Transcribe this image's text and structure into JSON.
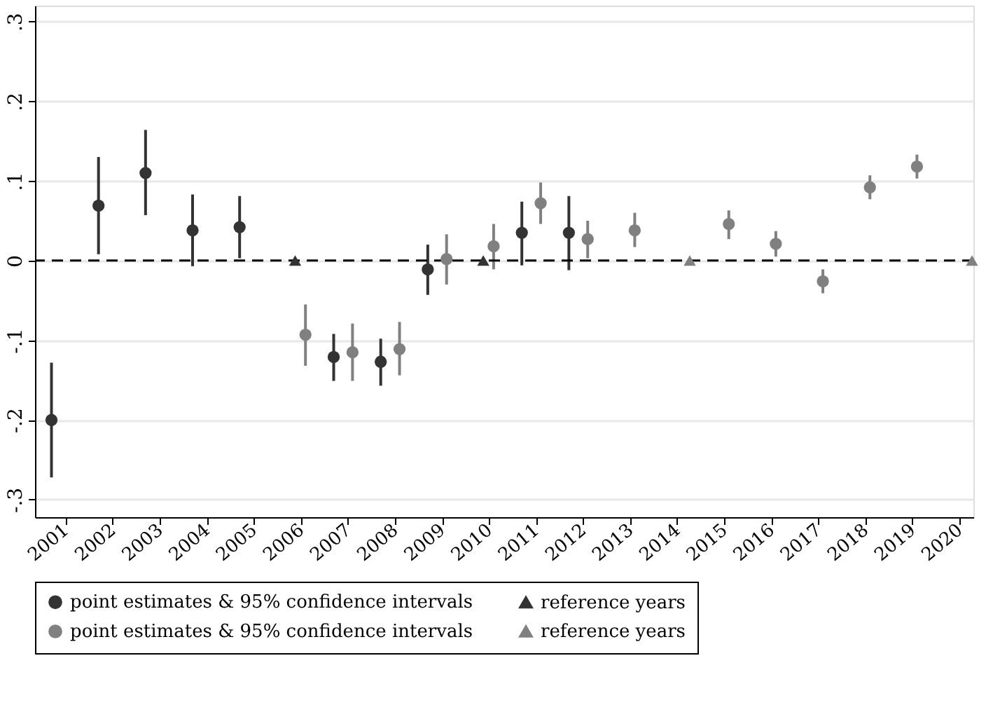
{
  "chart_data": {
    "type": "scatter",
    "xlim": [
      2000.35,
      2020.3
    ],
    "ylim": [
      -0.322,
      0.32
    ],
    "xticks": [
      2001,
      2002,
      2003,
      2004,
      2005,
      2006,
      2007,
      2008,
      2009,
      2010,
      2011,
      2012,
      2013,
      2014,
      2015,
      2016,
      2017,
      2018,
      2019,
      2020
    ],
    "yticks": [
      {
        "value": 0.3,
        "label": ".3"
      },
      {
        "value": 0.2,
        "label": ".2"
      },
      {
        "value": 0.1,
        "label": ".1"
      },
      0,
      {
        "value": -0.1,
        "label": "-.1"
      },
      {
        "value": -0.2,
        "label": "-.2"
      },
      {
        "value": -0.3,
        "label": "-.3"
      }
    ],
    "grid": "y",
    "legend": "bottom",
    "ref_lines": [
      {
        "axis": "y",
        "value": 0,
        "color": "#000000",
        "line_style": "dashed"
      }
    ],
    "series": [
      {
        "name": "point estimates & 95% confidence intervals",
        "color": "#333333",
        "marker": "circle",
        "x": [
          2000.7,
          2001.7,
          2002.7,
          2003.7,
          2004.7,
          2006.7,
          2007.7,
          2008.7,
          2010.7,
          2011.7
        ],
        "values": [
          -0.2,
          0.069,
          0.11,
          0.038,
          0.042,
          -0.121,
          -0.127,
          -0.011,
          0.035,
          0.035
        ],
        "errors": [
          [
            -0.272,
            -0.128
          ],
          [
            0.008,
            0.13
          ],
          [
            0.057,
            0.164
          ],
          [
            -0.007,
            0.083
          ],
          [
            0.003,
            0.081
          ],
          [
            -0.151,
            -0.092
          ],
          [
            -0.157,
            -0.098
          ],
          [
            -0.043,
            0.02
          ],
          [
            -0.006,
            0.074
          ],
          [
            -0.012,
            0.081
          ]
        ]
      },
      {
        "name": "reference years",
        "color": "#333333",
        "marker": "triangle",
        "x": [
          2005.88,
          2009.88
        ],
        "values": [
          0,
          0
        ]
      },
      {
        "name": "point estimates & 95% confidence intervals",
        "color": "#808080",
        "marker": "circle",
        "x": [
          2006.1,
          2007.1,
          2008.1,
          2009.1,
          2010.1,
          2011.1,
          2012.1,
          2013.1,
          2015.1,
          2016.1,
          2017.1,
          2018.1,
          2019.1
        ],
        "values": [
          -0.093,
          -0.115,
          -0.111,
          0.002,
          0.018,
          0.072,
          0.027,
          0.038,
          0.046,
          0.021,
          -0.026,
          0.092,
          0.118
        ],
        "errors": [
          [
            -0.132,
            -0.055
          ],
          [
            -0.151,
            -0.079
          ],
          [
            -0.144,
            -0.077
          ],
          [
            -0.03,
            0.033
          ],
          [
            -0.011,
            0.046
          ],
          [
            0.046,
            0.098
          ],
          [
            0.003,
            0.05
          ],
          [
            0.017,
            0.06
          ],
          [
            0.027,
            0.063
          ],
          [
            0.005,
            0.037
          ],
          [
            -0.041,
            -0.011
          ],
          [
            0.077,
            0.107
          ],
          [
            0.103,
            0.133
          ]
        ]
      },
      {
        "name": "reference years",
        "color": "#808080",
        "marker": "triangle",
        "x": [
          2014.27,
          2020.27
        ],
        "values": [
          0,
          0
        ]
      }
    ]
  }
}
